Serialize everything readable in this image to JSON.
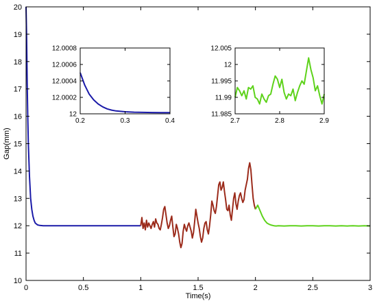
{
  "chart_data": [
    {
      "id": "main",
      "type": "line",
      "title": "",
      "xlabel": "Time(s)",
      "ylabel": "Gap(mm)",
      "xlim": [
        0,
        3
      ],
      "ylim": [
        10,
        20
      ],
      "xticks": [
        0,
        0.5,
        1,
        1.5,
        2,
        2.5,
        3
      ],
      "xtick_labels": [
        "0",
        "0.5",
        "1",
        "1.5",
        "2",
        "2.5",
        "3"
      ],
      "yticks": [
        10,
        11,
        12,
        13,
        14,
        15,
        16,
        17,
        18,
        19,
        20
      ],
      "ytick_labels": [
        "10",
        "11",
        "12",
        "13",
        "14",
        "15",
        "16",
        "17",
        "18",
        "19",
        "20"
      ],
      "grid": false,
      "series": [
        {
          "color": "#1a1aa8",
          "x": [
            0,
            0.005,
            0.01,
            0.015,
            0.02,
            0.025,
            0.03,
            0.04,
            0.05,
            0.06,
            0.07,
            0.08,
            0.1,
            0.12,
            0.15,
            0.2,
            0.3,
            0.5,
            0.8,
            1.0
          ],
          "y": [
            20,
            18.9,
            17.2,
            16.0,
            15.0,
            14.4,
            13.8,
            13.0,
            12.6,
            12.35,
            12.2,
            12.1,
            12.03,
            12.01,
            12.0,
            12.0,
            12.0,
            12.0,
            12.0,
            12.0
          ]
        },
        {
          "color": "#9b2a1a",
          "x": [
            1.0,
            1.01,
            1.02,
            1.03,
            1.04,
            1.05,
            1.06,
            1.07,
            1.08,
            1.09,
            1.1,
            1.11,
            1.12,
            1.13,
            1.14,
            1.15,
            1.16,
            1.17,
            1.18,
            1.19,
            1.2,
            1.21,
            1.22,
            1.23,
            1.24,
            1.25,
            1.26,
            1.27,
            1.28,
            1.29,
            1.3,
            1.31,
            1.32,
            1.33,
            1.34,
            1.35,
            1.36,
            1.37,
            1.38,
            1.39,
            1.4,
            1.41,
            1.42,
            1.43,
            1.44,
            1.45,
            1.46,
            1.47,
            1.48,
            1.49,
            1.5,
            1.51,
            1.52,
            1.53,
            1.54,
            1.55,
            1.56,
            1.57,
            1.58,
            1.59,
            1.6,
            1.61,
            1.62,
            1.63,
            1.64,
            1.65,
            1.66,
            1.67,
            1.68,
            1.69,
            1.7,
            1.71,
            1.72,
            1.73,
            1.74,
            1.75,
            1.76,
            1.77,
            1.78,
            1.79,
            1.8,
            1.81,
            1.82,
            1.83,
            1.84,
            1.85,
            1.86,
            1.87,
            1.88,
            1.89,
            1.9,
            1.91,
            1.92,
            1.93,
            1.94,
            1.95,
            1.96,
            1.97,
            1.98,
            1.99,
            2.0
          ],
          "y": [
            12.0,
            12.3,
            11.9,
            12.1,
            11.85,
            12.2,
            11.95,
            12.1,
            12.0,
            11.9,
            12.05,
            12.15,
            11.95,
            12.25,
            12.1,
            12.05,
            11.9,
            11.85,
            12.05,
            12.3,
            12.6,
            12.7,
            12.4,
            12.1,
            11.9,
            12.0,
            12.2,
            12.35,
            11.95,
            11.6,
            11.7,
            12.05,
            11.9,
            11.7,
            11.4,
            11.2,
            11.35,
            11.8,
            12.05,
            11.9,
            11.8,
            12.0,
            12.1,
            11.95,
            11.8,
            11.55,
            11.75,
            12.15,
            12.6,
            12.35,
            12.1,
            11.9,
            11.6,
            11.4,
            11.55,
            11.9,
            12.1,
            12.15,
            11.85,
            11.7,
            12.0,
            12.4,
            12.9,
            12.75,
            12.55,
            12.45,
            12.7,
            13.1,
            13.5,
            13.6,
            13.3,
            13.4,
            13.6,
            13.25,
            12.95,
            12.6,
            12.55,
            12.75,
            12.4,
            12.2,
            12.6,
            13.0,
            13.2,
            12.8,
            12.6,
            12.9,
            13.1,
            13.2,
            13.0,
            12.85,
            12.95,
            13.3,
            13.5,
            13.7,
            14.1,
            14.3,
            14.05,
            13.5,
            13.0,
            12.75,
            12.6
          ]
        },
        {
          "color": "#5dd21a",
          "x": [
            2.0,
            2.02,
            2.04,
            2.06,
            2.08,
            2.1,
            2.12,
            2.14,
            2.16,
            2.18,
            2.2,
            2.25,
            2.3,
            2.35,
            2.4,
            2.45,
            2.5,
            2.55,
            2.6,
            2.65,
            2.7,
            2.75,
            2.8,
            2.85,
            2.9,
            2.95,
            3.0
          ],
          "y": [
            12.6,
            12.75,
            12.55,
            12.35,
            12.2,
            12.1,
            12.05,
            12.02,
            12.0,
            11.99,
            12.0,
            11.99,
            12.0,
            12.0,
            11.99,
            12.0,
            12.0,
            11.99,
            12.0,
            12.0,
            11.99,
            12.0,
            11.99,
            12.0,
            11.99,
            12.0,
            11.99
          ]
        }
      ]
    },
    {
      "id": "inset-left",
      "type": "line",
      "title": "",
      "xlabel": "",
      "ylabel": "",
      "xlim": [
        0.2,
        0.4
      ],
      "ylim": [
        12.0,
        12.0008
      ],
      "xticks": [
        0.2,
        0.3,
        0.4
      ],
      "xtick_labels": [
        "0.2",
        "0.3",
        "0.4"
      ],
      "yticks": [
        12.0,
        12.0002,
        12.0004,
        12.0006,
        12.0008
      ],
      "ytick_labels": [
        "12",
        "12.0002",
        "12.0004",
        "12.0006",
        "12.0008"
      ],
      "grid": false,
      "series": [
        {
          "color": "#1a1aa8",
          "x": [
            0.2,
            0.21,
            0.22,
            0.23,
            0.24,
            0.25,
            0.26,
            0.27,
            0.28,
            0.3,
            0.32,
            0.34,
            0.36,
            0.38,
            0.4
          ],
          "y": [
            12.0005,
            12.00035,
            12.00024,
            12.00017,
            12.00012,
            12.000085,
            12.00006,
            12.000045,
            12.000035,
            12.000025,
            12.00002,
            12.000018,
            12.000016,
            12.000015,
            12.000015
          ]
        }
      ]
    },
    {
      "id": "inset-right",
      "type": "line",
      "title": "",
      "xlabel": "",
      "ylabel": "",
      "xlim": [
        2.7,
        2.9
      ],
      "ylim": [
        11.985,
        12.005
      ],
      "xticks": [
        2.7,
        2.8,
        2.9
      ],
      "xtick_labels": [
        "2.7",
        "2.8",
        "2.9"
      ],
      "yticks": [
        11.985,
        11.99,
        11.995,
        12.0,
        12.005
      ],
      "ytick_labels": [
        "11.985",
        "11.99",
        "11.995",
        "12",
        "12.005"
      ],
      "grid": false,
      "series": [
        {
          "color": "#5dd21a",
          "x": [
            2.7,
            2.705,
            2.71,
            2.715,
            2.72,
            2.725,
            2.73,
            2.735,
            2.74,
            2.745,
            2.75,
            2.755,
            2.76,
            2.765,
            2.77,
            2.775,
            2.78,
            2.785,
            2.79,
            2.795,
            2.8,
            2.805,
            2.81,
            2.815,
            2.82,
            2.825,
            2.83,
            2.835,
            2.84,
            2.845,
            2.85,
            2.855,
            2.86,
            2.865,
            2.87,
            2.875,
            2.88,
            2.885,
            2.89,
            2.895,
            2.9
          ],
          "y": [
            11.99,
            11.993,
            11.992,
            11.9905,
            11.992,
            11.9895,
            11.993,
            11.9925,
            11.9935,
            11.99,
            11.9895,
            11.988,
            11.991,
            11.9895,
            11.9885,
            11.9905,
            11.991,
            11.994,
            11.9965,
            11.9955,
            11.993,
            11.9955,
            11.9915,
            11.9895,
            11.991,
            11.9905,
            11.9925,
            11.989,
            11.9915,
            11.9935,
            11.995,
            11.994,
            11.998,
            12.002,
            11.9985,
            11.996,
            11.992,
            11.9935,
            11.9905,
            11.988,
            11.991
          ]
        }
      ]
    }
  ]
}
